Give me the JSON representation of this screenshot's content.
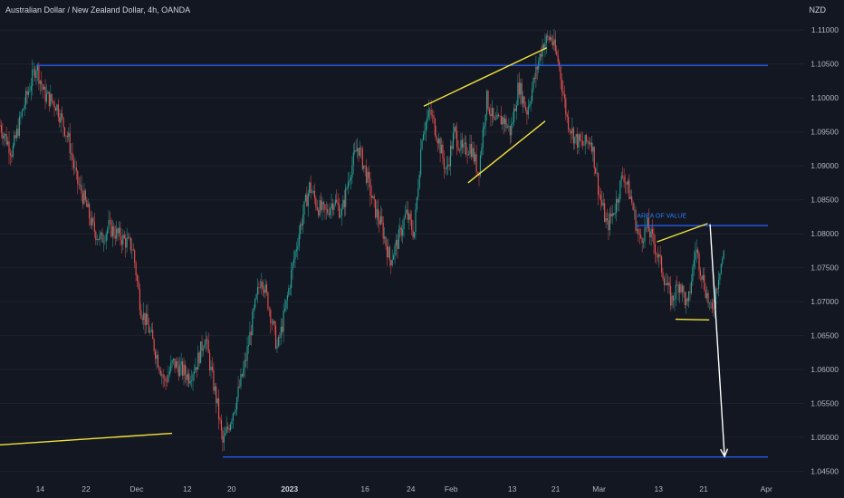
{
  "header": {
    "title": "Australian Dollar / New Zealand Dollar, 4h, OANDA",
    "currency": "NZD"
  },
  "chart_data": {
    "type": "candlestick",
    "symbol": "AUDNZD",
    "timeframe": "4h",
    "y_ticks": [
      "1.11000",
      "1.10500",
      "1.10000",
      "1.09500",
      "1.09000",
      "1.08500",
      "1.08000",
      "1.07500",
      "1.07000",
      "1.06500",
      "1.06000",
      "1.05500",
      "1.05000",
      "1.04500"
    ],
    "ylim": [
      1.044,
      1.1115
    ],
    "x_ticks": [
      {
        "label": "14",
        "pos": 0.05
      },
      {
        "label": "22",
        "pos": 0.107
      },
      {
        "label": "Dec",
        "pos": 0.17
      },
      {
        "label": "12",
        "pos": 0.233
      },
      {
        "label": "20",
        "pos": 0.288
      },
      {
        "label": "2023",
        "pos": 0.36,
        "bold": true
      },
      {
        "label": "16",
        "pos": 0.454
      },
      {
        "label": "24",
        "pos": 0.511
      },
      {
        "label": "Feb",
        "pos": 0.561
      },
      {
        "label": "13",
        "pos": 0.637
      },
      {
        "label": "21",
        "pos": 0.691
      },
      {
        "label": "Mar",
        "pos": 0.745
      },
      {
        "label": "13",
        "pos": 0.819
      },
      {
        "label": "21",
        "pos": 0.875
      },
      {
        "label": "Apr",
        "pos": 0.953
      }
    ],
    "path": [
      [
        0.0,
        1.096
      ],
      [
        0.015,
        1.092
      ],
      [
        0.03,
        1.099
      ],
      [
        0.045,
        1.1048
      ],
      [
        0.055,
        1.1005
      ],
      [
        0.07,
        1.099
      ],
      [
        0.085,
        1.094
      ],
      [
        0.095,
        1.088
      ],
      [
        0.105,
        1.085
      ],
      [
        0.115,
        1.081
      ],
      [
        0.125,
        1.079
      ],
      [
        0.135,
        1.081
      ],
      [
        0.145,
        1.08
      ],
      [
        0.155,
        1.079
      ],
      [
        0.165,
        1.078
      ],
      [
        0.175,
        1.069
      ],
      [
        0.185,
        1.066
      ],
      [
        0.195,
        1.062
      ],
      [
        0.205,
        1.058
      ],
      [
        0.215,
        1.061
      ],
      [
        0.225,
        1.06
      ],
      [
        0.235,
        1.059
      ],
      [
        0.245,
        1.061
      ],
      [
        0.255,
        1.065
      ],
      [
        0.262,
        1.06
      ],
      [
        0.27,
        1.055
      ],
      [
        0.277,
        1.049
      ],
      [
        0.285,
        1.052
      ],
      [
        0.295,
        1.056
      ],
      [
        0.305,
        1.061
      ],
      [
        0.315,
        1.068
      ],
      [
        0.325,
        1.074
      ],
      [
        0.335,
        1.069
      ],
      [
        0.345,
        1.063
      ],
      [
        0.355,
        1.069
      ],
      [
        0.365,
        1.076
      ],
      [
        0.375,
        1.082
      ],
      [
        0.385,
        1.087
      ],
      [
        0.395,
        1.084
      ],
      [
        0.405,
        1.083
      ],
      [
        0.415,
        1.085
      ],
      [
        0.425,
        1.083
      ],
      [
        0.435,
        1.089
      ],
      [
        0.445,
        1.093
      ],
      [
        0.455,
        1.089
      ],
      [
        0.465,
        1.084
      ],
      [
        0.475,
        1.081
      ],
      [
        0.485,
        1.076
      ],
      [
        0.495,
        1.079
      ],
      [
        0.505,
        1.083
      ],
      [
        0.515,
        1.08
      ],
      [
        0.525,
        1.095
      ],
      [
        0.535,
        1.098
      ],
      [
        0.545,
        1.094
      ],
      [
        0.555,
        1.089
      ],
      [
        0.565,
        1.095
      ],
      [
        0.575,
        1.092
      ],
      [
        0.585,
        1.093
      ],
      [
        0.595,
        1.089
      ],
      [
        0.605,
        1.1
      ],
      [
        0.615,
        1.096
      ],
      [
        0.625,
        1.097
      ],
      [
        0.635,
        1.095
      ],
      [
        0.645,
        1.102
      ],
      [
        0.655,
        1.098
      ],
      [
        0.665,
        1.103
      ],
      [
        0.675,
        1.108
      ],
      [
        0.685,
        1.109
      ],
      [
        0.695,
        1.105
      ],
      [
        0.705,
        1.097
      ],
      [
        0.715,
        1.094
      ],
      [
        0.725,
        1.093
      ],
      [
        0.735,
        1.094
      ],
      [
        0.745,
        1.086
      ],
      [
        0.755,
        1.081
      ],
      [
        0.765,
        1.084
      ],
      [
        0.775,
        1.089
      ],
      [
        0.785,
        1.085
      ],
      [
        0.795,
        1.079
      ],
      [
        0.805,
        1.081
      ],
      [
        0.815,
        1.078
      ],
      [
        0.825,
        1.074
      ],
      [
        0.835,
        1.07
      ],
      [
        0.845,
        1.073
      ],
      [
        0.855,
        1.069
      ],
      [
        0.865,
        1.078
      ],
      [
        0.875,
        1.073
      ],
      [
        0.885,
        1.068
      ],
      [
        0.895,
        1.075
      ],
      [
        0.9,
        1.077
      ]
    ],
    "drawings": [
      {
        "kind": "hline",
        "price": 1.1048,
        "x0": 0.045,
        "x1": 0.955,
        "color": "#2962ff"
      },
      {
        "kind": "hline",
        "price": 1.0812,
        "x0": 0.79,
        "x1": 0.955,
        "color": "#2962ff"
      },
      {
        "kind": "hline",
        "price": 1.0471,
        "x0": 0.277,
        "x1": 0.955,
        "color": "#2962ff"
      },
      {
        "kind": "trend",
        "p0": [
          0.0,
          1.0489
        ],
        "p1": [
          0.214,
          1.0506
        ],
        "color": "#f2e13c"
      },
      {
        "kind": "trend",
        "p0": [
          0.527,
          1.0988
        ],
        "p1": [
          0.68,
          1.1074
        ],
        "color": "#f2e13c"
      },
      {
        "kind": "trend",
        "p0": [
          0.582,
          1.0875
        ],
        "p1": [
          0.678,
          1.0966
        ],
        "color": "#f2e13c"
      },
      {
        "kind": "trend",
        "p0": [
          0.817,
          1.0788
        ],
        "p1": [
          0.88,
          1.0815
        ],
        "color": "#f2e13c"
      },
      {
        "kind": "trend",
        "p0": [
          0.84,
          1.0674
        ],
        "p1": [
          0.882,
          1.0673
        ],
        "color": "#f2e13c"
      },
      {
        "kind": "arrow",
        "p0": [
          0.883,
          1.0814
        ],
        "p1": [
          0.901,
          1.0472
        ],
        "color": "#ffffff"
      }
    ],
    "annotations": [
      {
        "text": "AREA OF VALUE",
        "x": 0.792,
        "price": 1.0818
      }
    ],
    "colors": {
      "background": "#131722",
      "up": "#26a69a",
      "down": "#ef5350",
      "grid": "#1e222d"
    }
  }
}
